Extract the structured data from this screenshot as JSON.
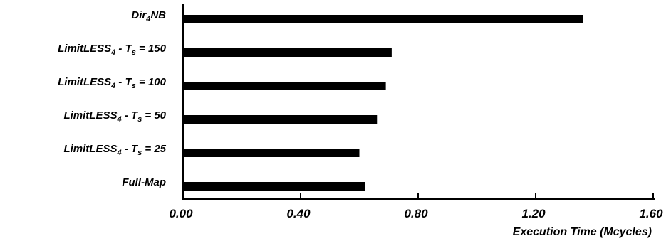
{
  "chart_data": {
    "type": "bar",
    "orientation": "horizontal",
    "categories": [
      {
        "base": "Dir",
        "sub": "4",
        "suffix": "NB",
        "text": "Dir4NB"
      },
      {
        "base": "LimitLESS",
        "sub": "4",
        "suffix": " - T",
        "sub2": "s",
        "suffix2": " = 150",
        "text": "LimitLESS4 - Ts = 150"
      },
      {
        "base": "LimitLESS",
        "sub": "4",
        "suffix": " - T",
        "sub2": "s",
        "suffix2": " = 100",
        "text": "LimitLESS4 - Ts = 100"
      },
      {
        "base": "LimitLESS",
        "sub": "4",
        "suffix": " - T",
        "sub2": "s",
        "suffix2": " = 50",
        "text": "LimitLESS4 - Ts = 50"
      },
      {
        "base": "LimitLESS",
        "sub": "4",
        "suffix": " - T",
        "sub2": "s",
        "suffix2": " = 25",
        "text": "LimitLESS4 - Ts = 25"
      },
      {
        "base": "Full-Map",
        "text": "Full-Map"
      }
    ],
    "values": [
      1.36,
      0.71,
      0.69,
      0.66,
      0.6,
      0.62
    ],
    "xlabel": "Execution Time (Mcycles)",
    "ylabel": "",
    "xlim": [
      0,
      1.6
    ],
    "xticks": [
      "0.00",
      "0.40",
      "0.80",
      "1.20",
      "1.60"
    ],
    "grid": false,
    "bar_color": "#000000"
  }
}
